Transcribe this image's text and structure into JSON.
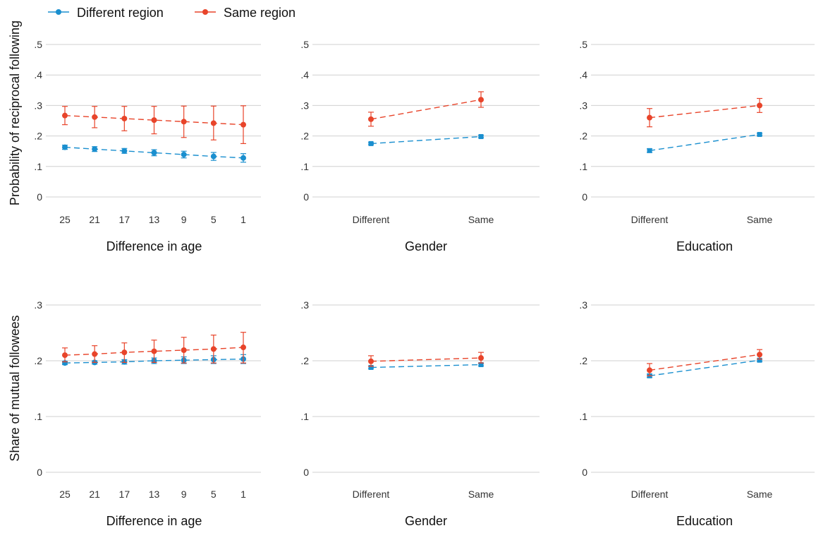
{
  "legend": {
    "items": [
      {
        "label": "Different region",
        "color": "#1a8fcf"
      },
      {
        "label": "Same region",
        "color": "#e8442a"
      }
    ]
  },
  "row_labels": {
    "top": "Probability of reciprocal following",
    "bottom": "Share of mutual followees"
  },
  "chart_data": [
    {
      "type": "line",
      "row": "top",
      "col": 0,
      "xlabel": "Difference in age",
      "ylabel": "Probability of reciprocal following",
      "categories": [
        "25",
        "21",
        "17",
        "13",
        "9",
        "5",
        "1"
      ],
      "ylim": [
        0,
        0.5
      ],
      "yticks": [
        0,
        0.1,
        0.2,
        0.3,
        0.4,
        0.5
      ],
      "ytick_labels": [
        "0",
        ".1",
        ".2",
        ".3",
        ".4",
        ".5"
      ],
      "series": [
        {
          "name": "Different region",
          "color": "#1a8fcf",
          "marker": "circle",
          "values": [
            0.163,
            0.157,
            0.151,
            0.145,
            0.139,
            0.133,
            0.128
          ],
          "ci_low": [
            0.156,
            0.149,
            0.143,
            0.135,
            0.128,
            0.12,
            0.114
          ],
          "ci_high": [
            0.17,
            0.165,
            0.159,
            0.155,
            0.15,
            0.146,
            0.142
          ]
        },
        {
          "name": "Same region",
          "color": "#e8442a",
          "marker": "circle",
          "values": [
            0.267,
            0.262,
            0.257,
            0.252,
            0.247,
            0.242,
            0.237
          ],
          "ci_low": [
            0.237,
            0.227,
            0.217,
            0.207,
            0.195,
            0.187,
            0.175
          ],
          "ci_high": [
            0.297,
            0.297,
            0.297,
            0.297,
            0.298,
            0.298,
            0.299
          ]
        }
      ]
    },
    {
      "type": "line",
      "row": "top",
      "col": 1,
      "xlabel": "Gender",
      "ylabel": "",
      "categories": [
        "Different",
        "Same"
      ],
      "ylim": [
        0,
        0.5
      ],
      "yticks": [
        0,
        0.1,
        0.2,
        0.3,
        0.4,
        0.5
      ],
      "ytick_labels": [
        "0",
        ".1",
        ".2",
        ".3",
        ".4",
        ".5"
      ],
      "series": [
        {
          "name": "Different region",
          "color": "#1a8fcf",
          "marker": "square",
          "values": [
            0.175,
            0.198
          ],
          "ci_low": [
            0.172,
            0.195
          ],
          "ci_high": [
            0.178,
            0.201
          ]
        },
        {
          "name": "Same region",
          "color": "#e8442a",
          "marker": "circle",
          "values": [
            0.255,
            0.319
          ],
          "ci_low": [
            0.232,
            0.294
          ],
          "ci_high": [
            0.278,
            0.345
          ]
        }
      ]
    },
    {
      "type": "line",
      "row": "top",
      "col": 2,
      "xlabel": "Education",
      "ylabel": "",
      "categories": [
        "Different",
        "Same"
      ],
      "ylim": [
        0,
        0.5
      ],
      "yticks": [
        0,
        0.1,
        0.2,
        0.3,
        0.4,
        0.5
      ],
      "ytick_labels": [
        "0",
        ".1",
        ".2",
        ".3",
        ".4",
        ".5"
      ],
      "series": [
        {
          "name": "Different region",
          "color": "#1a8fcf",
          "marker": "square",
          "values": [
            0.152,
            0.205
          ],
          "ci_low": [
            0.146,
            0.202
          ],
          "ci_high": [
            0.158,
            0.208
          ]
        },
        {
          "name": "Same region",
          "color": "#e8442a",
          "marker": "circle",
          "values": [
            0.26,
            0.3
          ],
          "ci_low": [
            0.23,
            0.277
          ],
          "ci_high": [
            0.29,
            0.323
          ]
        }
      ]
    },
    {
      "type": "line",
      "row": "bottom",
      "col": 0,
      "xlabel": "Difference in age",
      "ylabel": "Share of mutual followees",
      "categories": [
        "25",
        "21",
        "17",
        "13",
        "9",
        "5",
        "1"
      ],
      "ylim": [
        0,
        0.3
      ],
      "yticks": [
        0,
        0.1,
        0.2,
        0.3
      ],
      "ytick_labels": [
        "0",
        ".1",
        ".2",
        ".3"
      ],
      "series": [
        {
          "name": "Different region",
          "color": "#1a8fcf",
          "marker": "circle",
          "values": [
            0.196,
            0.197,
            0.198,
            0.2,
            0.201,
            0.202,
            0.203
          ],
          "ci_low": [
            0.193,
            0.194,
            0.194,
            0.195,
            0.195,
            0.195,
            0.195
          ],
          "ci_high": [
            0.199,
            0.2,
            0.202,
            0.205,
            0.207,
            0.209,
            0.211
          ]
        },
        {
          "name": "Same region",
          "color": "#e8442a",
          "marker": "circle",
          "values": [
            0.21,
            0.212,
            0.215,
            0.217,
            0.219,
            0.221,
            0.224
          ],
          "ci_low": [
            0.198,
            0.197,
            0.197,
            0.197,
            0.196,
            0.196,
            0.196
          ],
          "ci_high": [
            0.223,
            0.227,
            0.232,
            0.237,
            0.242,
            0.246,
            0.251
          ]
        }
      ]
    },
    {
      "type": "line",
      "row": "bottom",
      "col": 1,
      "xlabel": "Gender",
      "ylabel": "",
      "categories": [
        "Different",
        "Same"
      ],
      "ylim": [
        0,
        0.3
      ],
      "yticks": [
        0,
        0.1,
        0.2,
        0.3
      ],
      "ytick_labels": [
        "0",
        ".1",
        ".2",
        ".3"
      ],
      "series": [
        {
          "name": "Different region",
          "color": "#1a8fcf",
          "marker": "square",
          "values": [
            0.188,
            0.193
          ],
          "ci_low": [
            0.186,
            0.191
          ],
          "ci_high": [
            0.19,
            0.195
          ]
        },
        {
          "name": "Same region",
          "color": "#e8442a",
          "marker": "circle",
          "values": [
            0.199,
            0.205
          ],
          "ci_low": [
            0.19,
            0.196
          ],
          "ci_high": [
            0.209,
            0.215
          ]
        }
      ]
    },
    {
      "type": "line",
      "row": "bottom",
      "col": 2,
      "xlabel": "Education",
      "ylabel": "",
      "categories": [
        "Different",
        "Same"
      ],
      "ylim": [
        0,
        0.3
      ],
      "yticks": [
        0,
        0.1,
        0.2,
        0.3
      ],
      "ytick_labels": [
        "0",
        ".1",
        ".2",
        ".3"
      ],
      "series": [
        {
          "name": "Different region",
          "color": "#1a8fcf",
          "marker": "square",
          "values": [
            0.173,
            0.201
          ],
          "ci_low": [
            0.17,
            0.199
          ],
          "ci_high": [
            0.176,
            0.203
          ]
        },
        {
          "name": "Same region",
          "color": "#e8442a",
          "marker": "circle",
          "values": [
            0.183,
            0.211
          ],
          "ci_low": [
            0.173,
            0.203
          ],
          "ci_high": [
            0.195,
            0.22
          ]
        }
      ]
    }
  ]
}
